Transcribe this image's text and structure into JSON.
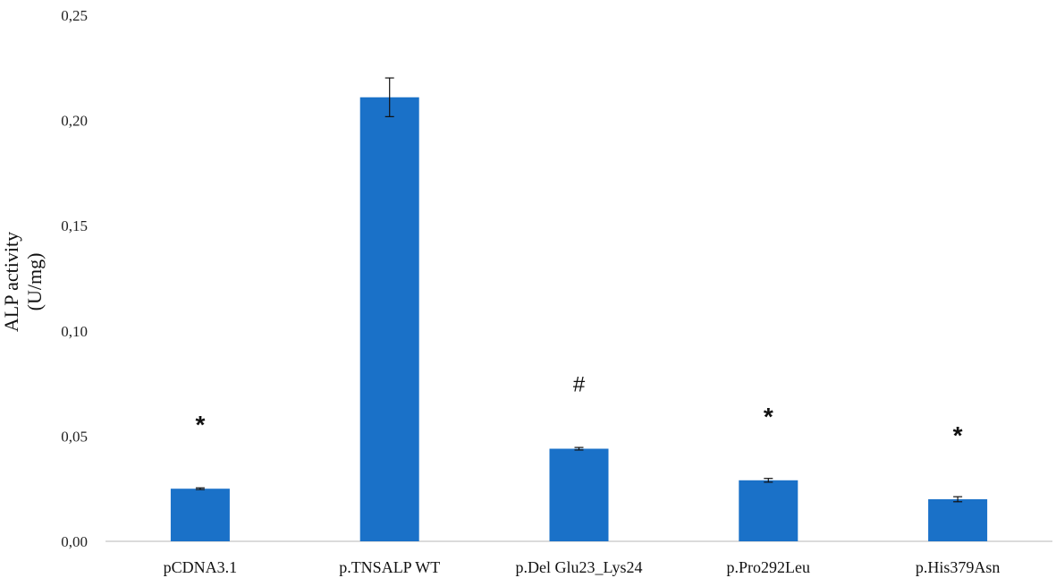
{
  "chart_data": {
    "type": "bar",
    "title": "",
    "xlabel": "",
    "ylabel_lines": [
      "ALP activity",
      "(U/mg)"
    ],
    "ylim": [
      0,
      0.25
    ],
    "yticks": [
      0.0,
      0.05,
      0.1,
      0.15,
      0.2,
      0.25
    ],
    "ytick_labels": [
      "0,00",
      "0,05",
      "0,10",
      "0,15",
      "0,20",
      "0,25"
    ],
    "categories": [
      "pCDNA3.1",
      "p.TNSALP WT",
      "p.Del Glu23_Lys24",
      "p.Pro292Leu",
      "p.His379Asn"
    ],
    "values": [
      0.025,
      0.211,
      0.044,
      0.029,
      0.02
    ],
    "errors": [
      0.0004,
      0.0092,
      0.0006,
      0.0009,
      0.0012
    ],
    "annotations": [
      "*",
      "",
      "#",
      "*",
      "*"
    ],
    "bar_color": "#1a71c8",
    "grid": false,
    "legend": "none"
  }
}
